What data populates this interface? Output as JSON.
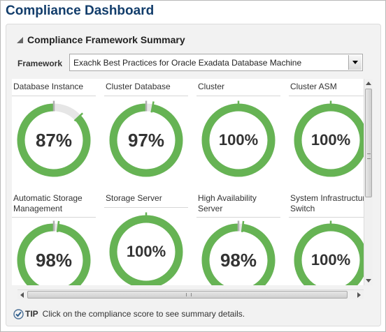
{
  "page": {
    "title": "Compliance Dashboard"
  },
  "panel": {
    "title": "Compliance Framework Summary"
  },
  "framework": {
    "label": "Framework",
    "selected": "Exachk Best Practices for Oracle Exadata Database Machine"
  },
  "colors": {
    "gauge_fill": "#66b354",
    "gauge_track": "#e6e6e6",
    "marker": "#b0b0b0",
    "title": "#123d6b"
  },
  "tiles": [
    {
      "label": "Database Instance",
      "percent": 87,
      "value_text": "87%"
    },
    {
      "label": "Cluster Database",
      "percent": 97,
      "value_text": "97%"
    },
    {
      "label": "Cluster",
      "percent": 100,
      "value_text": "100%"
    },
    {
      "label": "Cluster ASM",
      "percent": 100,
      "value_text": "100%"
    },
    {
      "label": "Automatic Storage\nManagement",
      "percent": 98,
      "value_text": "98%"
    },
    {
      "label": "Storage Server",
      "percent": 100,
      "value_text": "100%"
    },
    {
      "label": "High Availability\nServer",
      "percent": 98,
      "value_text": "98%"
    },
    {
      "label": "System Infrastructure\nSwitch",
      "percent": 100,
      "value_text": "100%"
    }
  ],
  "tip": {
    "label": "TIP",
    "text": "Click on the compliance score to see summary details."
  }
}
